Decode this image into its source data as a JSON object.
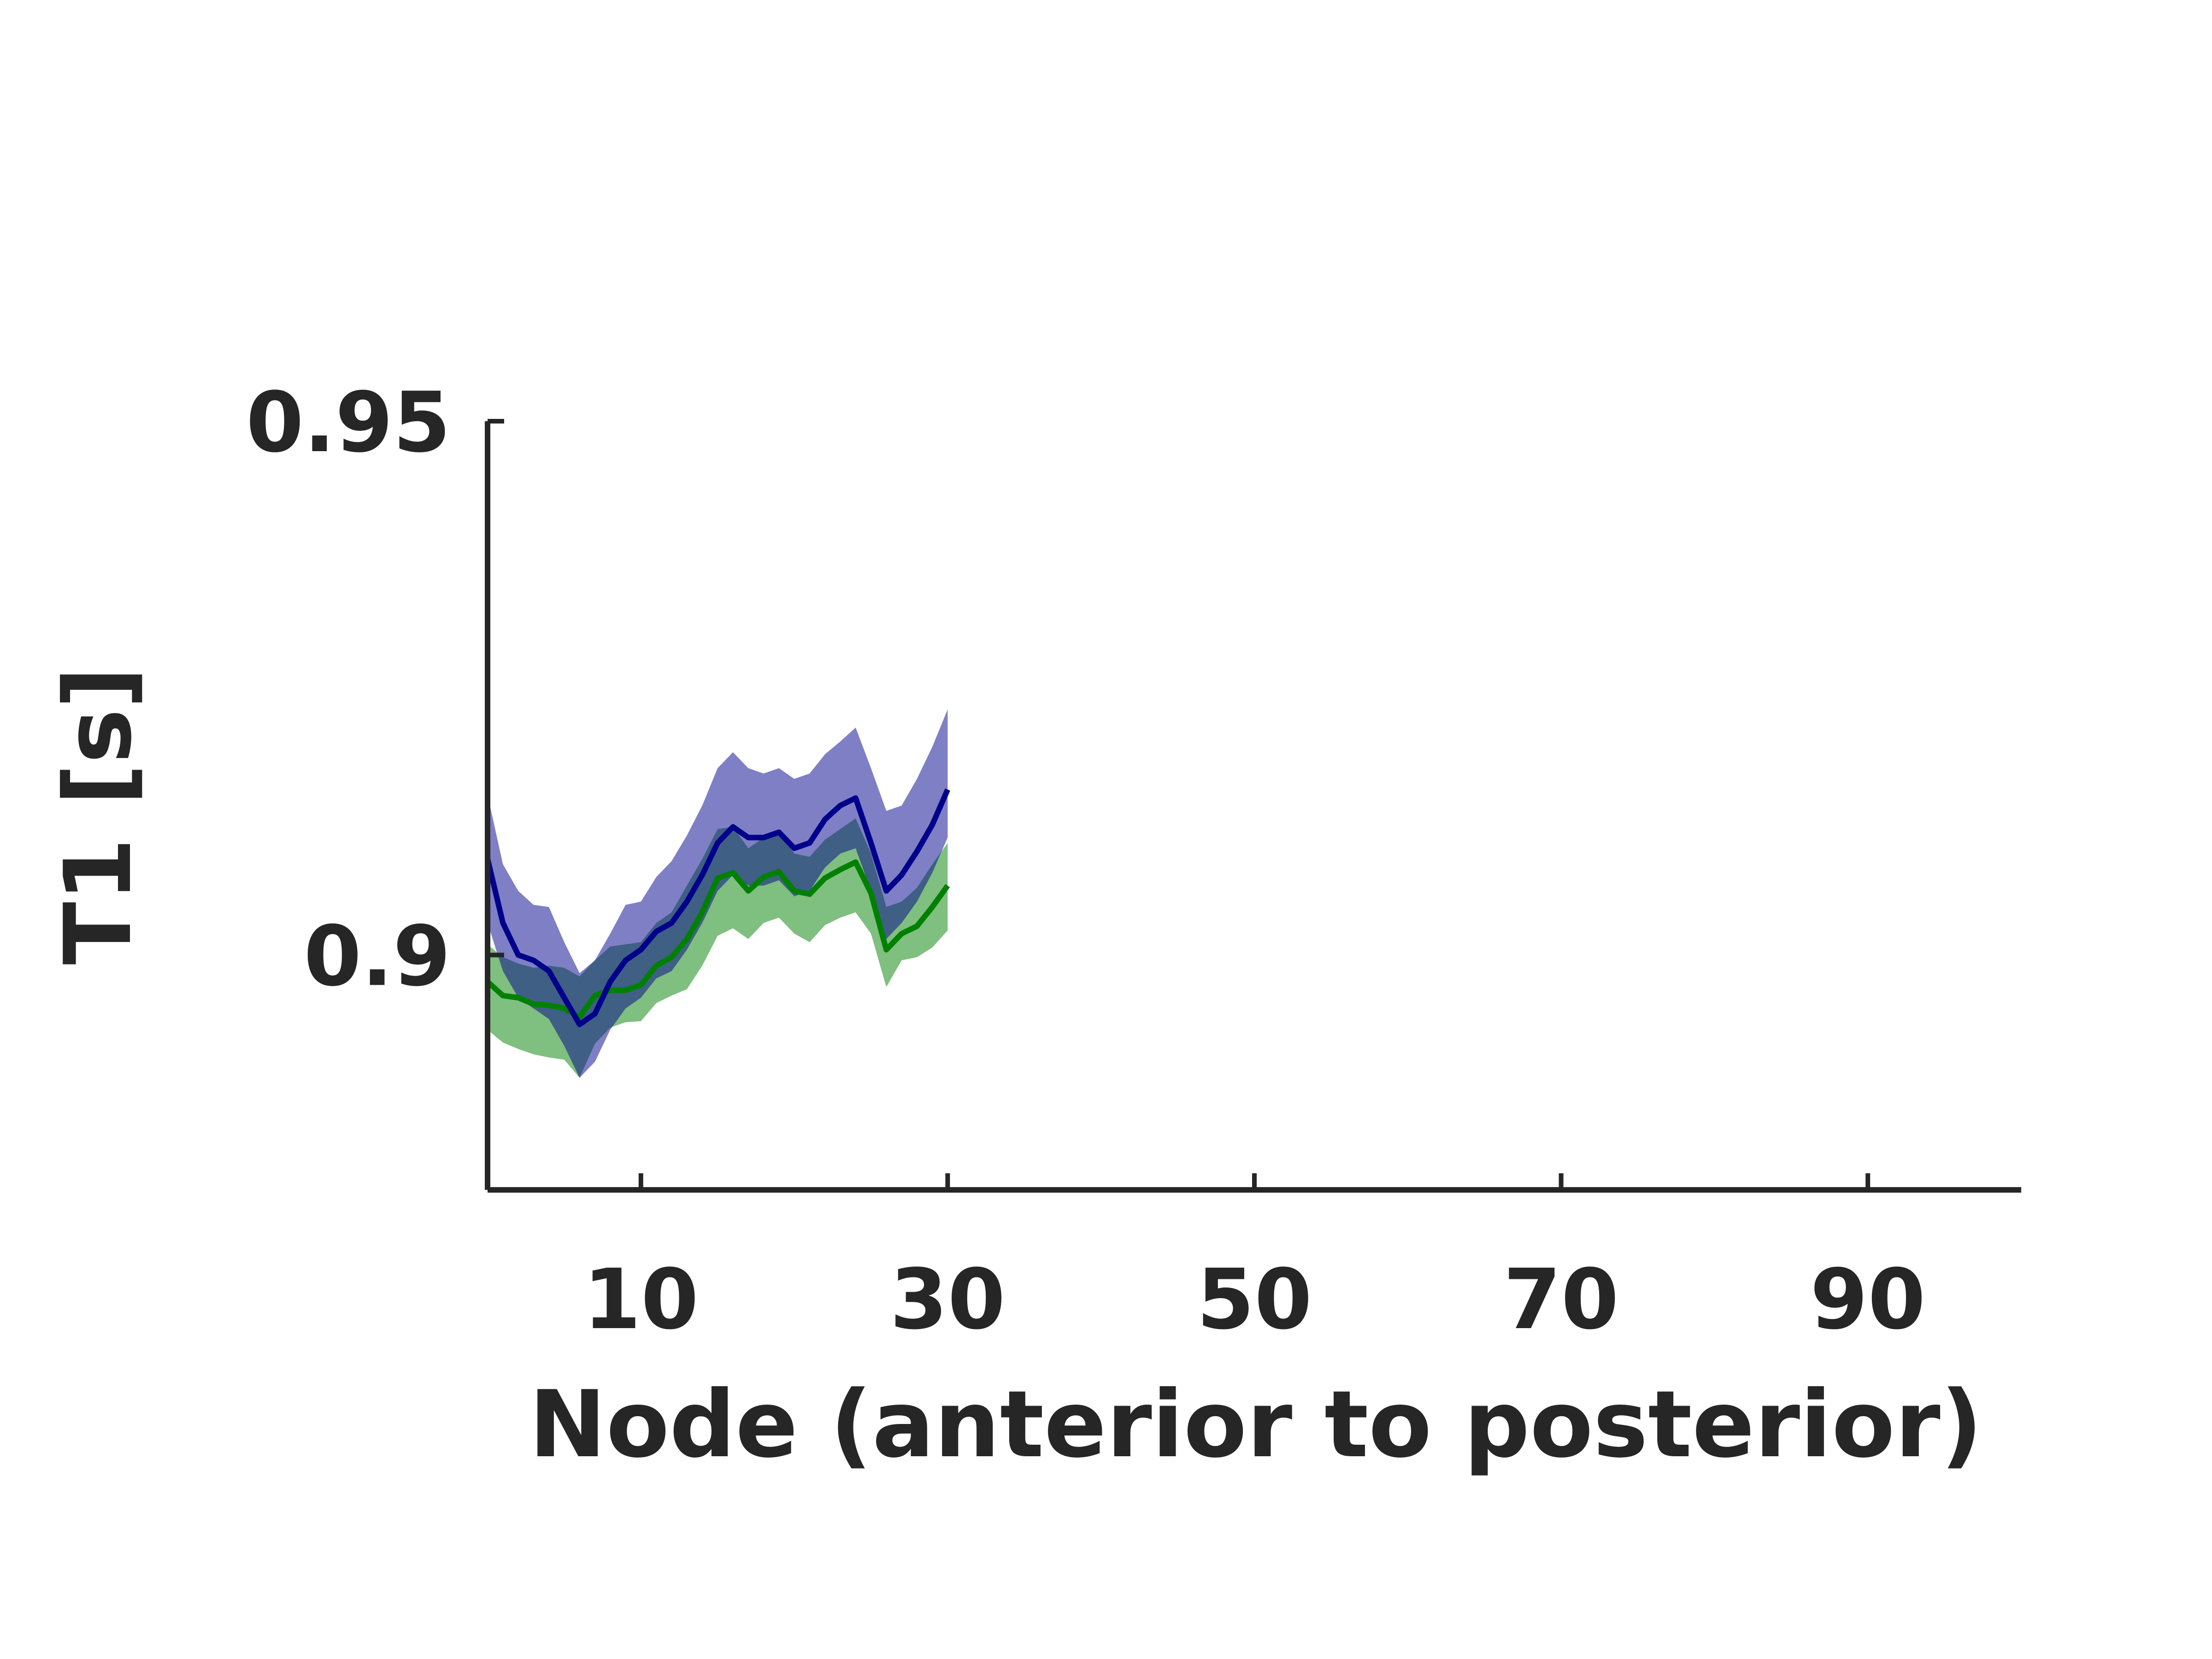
{
  "chart_data": {
    "type": "line",
    "title": "",
    "xlabel": "Node (anterior to posterior)",
    "ylabel": "T1 [s]",
    "xlim": [
      0,
      100
    ],
    "ylim": [
      0.878,
      0.95
    ],
    "xticks": [
      10,
      30,
      50,
      70,
      90
    ],
    "xtick_labels": [
      "10",
      "30",
      "50",
      "70",
      "90"
    ],
    "yticks": [
      0.9,
      0.95
    ],
    "ytick_labels": [
      "0.9",
      "0.95"
    ],
    "grid": false,
    "legend": null,
    "series": [
      {
        "color": "#008000",
        "band_color": "#008000",
        "band_opacity": 0.5,
        "x": [
          0,
          1,
          2,
          3,
          4,
          5,
          6,
          7,
          8,
          9,
          10,
          11,
          12,
          13,
          14,
          15,
          16,
          17,
          18,
          19,
          20,
          21,
          22,
          23,
          24,
          25,
          26,
          27,
          28,
          29,
          30
        ],
        "values": [
          0.8975,
          0.8962,
          0.896,
          0.8954,
          0.8953,
          0.895,
          0.8942,
          0.8962,
          0.8967,
          0.8967,
          0.8972,
          0.899,
          0.8998,
          0.9015,
          0.904,
          0.9072,
          0.9077,
          0.906,
          0.9073,
          0.9078,
          0.906,
          0.9057,
          0.9072,
          0.908,
          0.9087,
          0.9058,
          0.9005,
          0.902,
          0.9027,
          0.9045,
          0.9065
        ],
        "lower": [
          0.893,
          0.8918,
          0.8912,
          0.8907,
          0.8904,
          0.8902,
          0.8885,
          0.8917,
          0.8932,
          0.8937,
          0.8938,
          0.8955,
          0.8962,
          0.8968,
          0.899,
          0.9018,
          0.9025,
          0.9015,
          0.903,
          0.9035,
          0.902,
          0.9012,
          0.9028,
          0.9035,
          0.904,
          0.902,
          0.897,
          0.8995,
          0.8998,
          0.9007,
          0.9023
        ],
        "upper": [
          0.901,
          0.8998,
          0.8992,
          0.8988,
          0.899,
          0.8988,
          0.898,
          0.8995,
          0.9008,
          0.901,
          0.9012,
          0.903,
          0.904,
          0.9065,
          0.909,
          0.9118,
          0.912,
          0.91,
          0.911,
          0.9115,
          0.9095,
          0.9092,
          0.9108,
          0.9118,
          0.9128,
          0.9095,
          0.9045,
          0.905,
          0.9063,
          0.9085,
          0.9105
        ]
      },
      {
        "color": "#00008b",
        "band_color": "#00008b",
        "band_opacity": 0.5,
        "x": [
          0,
          1,
          2,
          3,
          4,
          5,
          6,
          7,
          8,
          9,
          10,
          11,
          12,
          13,
          14,
          15,
          16,
          17,
          18,
          19,
          20,
          21,
          22,
          23,
          24,
          25,
          26,
          27,
          28,
          29,
          30
        ],
        "values": [
          0.909,
          0.903,
          0.9,
          0.8995,
          0.8985,
          0.896,
          0.8935,
          0.8945,
          0.8975,
          0.8995,
          0.9005,
          0.9022,
          0.903,
          0.905,
          0.9075,
          0.9105,
          0.912,
          0.911,
          0.911,
          0.9115,
          0.91,
          0.9105,
          0.9127,
          0.914,
          0.9147,
          0.9105,
          0.906,
          0.9075,
          0.9097,
          0.9122,
          0.9155
        ],
        "lower": [
          0.903,
          0.8985,
          0.896,
          0.895,
          0.894,
          0.8915,
          0.8885,
          0.89,
          0.893,
          0.895,
          0.896,
          0.8978,
          0.8985,
          0.9005,
          0.903,
          0.906,
          0.9075,
          0.9065,
          0.9065,
          0.907,
          0.9055,
          0.906,
          0.9082,
          0.9095,
          0.91,
          0.906,
          0.9015,
          0.903,
          0.905,
          0.9077,
          0.911
        ],
        "upper": [
          0.915,
          0.9085,
          0.906,
          0.9047,
          0.9045,
          0.9012,
          0.8983,
          0.8995,
          0.902,
          0.9047,
          0.905,
          0.9073,
          0.9088,
          0.9112,
          0.914,
          0.9175,
          0.919,
          0.9175,
          0.917,
          0.9175,
          0.9165,
          0.917,
          0.9188,
          0.92,
          0.9213,
          0.9175,
          0.9135,
          0.914,
          0.9165,
          0.9195,
          0.923
        ]
      }
    ]
  }
}
